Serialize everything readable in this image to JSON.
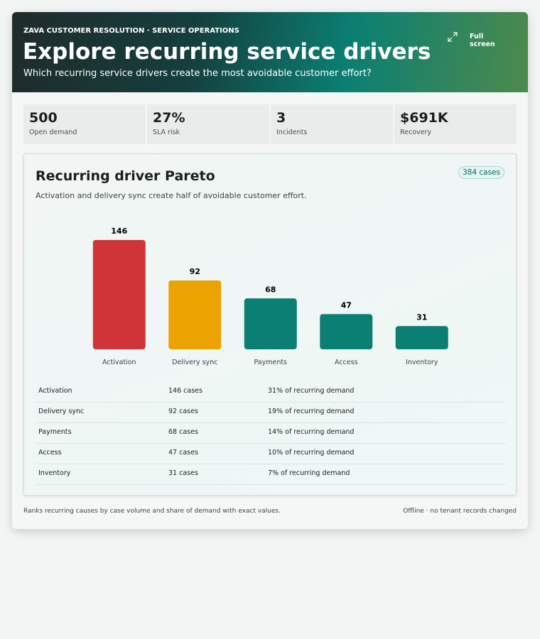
{
  "header": {
    "eyebrow": "ZAVA CUSTOMER RESOLUTION · SERVICE OPERATIONS",
    "title": "Explore recurring service drivers",
    "subtitle": "Which recurring service drivers create the most avoidable customer effort?",
    "action": "Full screen"
  },
  "kpis": [
    {
      "value": "500",
      "label": "Open demand"
    },
    {
      "value": "27%",
      "label": "SLA risk"
    },
    {
      "value": "3",
      "label": "Incidents"
    },
    {
      "value": "$691K",
      "label": "Recovery"
    }
  ],
  "panel": {
    "title": "Recurring driver Pareto",
    "badge": "384 cases",
    "subtitle": "Activation and delivery sync create half of avoidable customer effort.",
    "chart_data": {
      "type": "bar",
      "categories": [
        "Activation",
        "Delivery sync",
        "Payments",
        "Access",
        "Inventory"
      ],
      "values": [
        146,
        92,
        68,
        47,
        31
      ],
      "colors": [
        "#d13438",
        "#eaa300",
        "#0b7f73",
        "#0b7f73",
        "#0b7f73"
      ]
    },
    "table": {
      "rows": [
        [
          "Activation",
          "146 cases",
          "31% of recurring demand"
        ],
        [
          "Delivery sync",
          "92 cases",
          "19% of recurring demand"
        ],
        [
          "Payments",
          "68 cases",
          "14% of recurring demand"
        ],
        [
          "Access",
          "47 cases",
          "10% of recurring demand"
        ],
        [
          "Inventory",
          "31 cases",
          "7% of recurring demand"
        ]
      ]
    }
  },
  "footer": {
    "note": "Ranks recurring causes by case volume and share of demand with exact values.",
    "status": "Offline · no tenant records changed"
  }
}
